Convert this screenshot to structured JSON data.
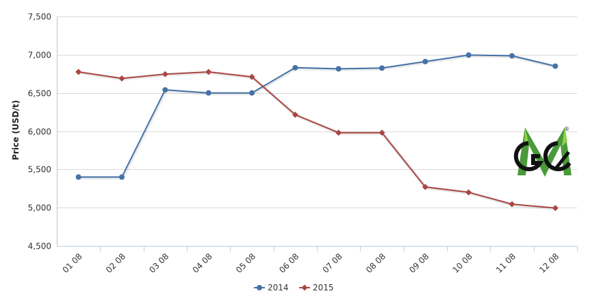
{
  "chart_data": {
    "type": "line",
    "categories": [
      "01 08",
      "02 08",
      "03 08",
      "04 08",
      "05 08",
      "06 08",
      "07 08",
      "08 08",
      "09 08",
      "10 08",
      "11 08",
      "12 08"
    ],
    "series": [
      {
        "name": "2014",
        "color": "#4572a7",
        "marker": "circle",
        "values": [
          5400,
          5400,
          6540,
          6500,
          6500,
          6830,
          6815,
          6825,
          6910,
          6995,
          6985,
          6850
        ]
      },
      {
        "name": "2015",
        "color": "#aa4643",
        "marker": "diamond",
        "values": [
          6775,
          6690,
          6745,
          6775,
          6710,
          6215,
          5980,
          5980,
          5270,
          5200,
          5045,
          4995
        ]
      }
    ],
    "ylabel": "Price (USD/t)",
    "ylim": [
      4500,
      7500
    ],
    "yticks": [
      "7,500",
      "7,000",
      "6,500",
      "6,000",
      "5,500",
      "5,000",
      "4,500"
    ],
    "ytick_values": [
      7500,
      7000,
      6500,
      6000,
      5500,
      5000,
      4500
    ],
    "grid": true,
    "legend_position": "bottom-center",
    "logo": "GM logo with registered mark"
  }
}
